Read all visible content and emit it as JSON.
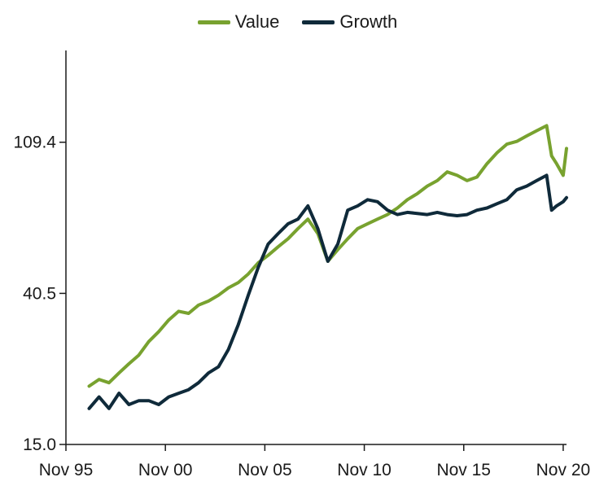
{
  "chart_data": {
    "type": "line",
    "title": "",
    "xlabel": "",
    "ylabel": "",
    "y_scale": "log",
    "ylim": [
      15.0,
      200.0
    ],
    "xlim": [
      "1995-11",
      "2021-01"
    ],
    "x_ticks": [
      "Nov 95",
      "Nov 00",
      "Nov 05",
      "Nov 10",
      "Nov 15",
      "Nov 20"
    ],
    "x_tick_dates": [
      "1995-11",
      "2000-11",
      "2005-11",
      "2010-11",
      "2015-11",
      "2020-11"
    ],
    "y_ticks": [
      15.0,
      40.5,
      109.4
    ],
    "y_tick_labels": [
      "15.0",
      "40.5",
      "109.4"
    ],
    "legend_position": "top-center",
    "grid": false,
    "x": [
      "1997-01",
      "1997-07",
      "1998-01",
      "1998-07",
      "1999-01",
      "1999-07",
      "2000-01",
      "2000-07",
      "2001-01",
      "2001-07",
      "2002-01",
      "2002-07",
      "2003-01",
      "2003-07",
      "2004-01",
      "2004-07",
      "2005-01",
      "2005-07",
      "2006-01",
      "2006-07",
      "2007-01",
      "2007-07",
      "2008-01",
      "2008-07",
      "2009-01",
      "2009-07",
      "2010-01",
      "2010-07",
      "2011-01",
      "2011-07",
      "2012-01",
      "2012-07",
      "2013-01",
      "2013-07",
      "2014-01",
      "2014-07",
      "2015-01",
      "2015-07",
      "2016-01",
      "2016-07",
      "2017-01",
      "2017-07",
      "2018-01",
      "2018-07",
      "2019-01",
      "2019-07",
      "2020-01",
      "2020-04",
      "2020-07",
      "2020-11",
      "2021-01"
    ],
    "series": [
      {
        "name": "Value",
        "color": "#78a22f",
        "values": [
          22.0,
          23.0,
          22.5,
          24.0,
          25.5,
          27.0,
          29.5,
          31.5,
          34.0,
          36.0,
          35.5,
          37.5,
          38.5,
          40.0,
          42.0,
          43.5,
          46.0,
          49.5,
          52.0,
          55.0,
          58.0,
          62.0,
          66.0,
          60.0,
          50.0,
          54.0,
          58.0,
          62.0,
          64.0,
          66.0,
          68.0,
          71.0,
          75.0,
          78.0,
          82.0,
          85.0,
          90.0,
          88.0,
          85.0,
          87.0,
          95.0,
          102.0,
          108.0,
          110.0,
          114.0,
          118.0,
          122.0,
          100.0,
          95.0,
          88.0,
          105.0
        ]
      },
      {
        "name": "Growth",
        "color": "#0f2a3a",
        "values": [
          19.0,
          20.5,
          19.0,
          21.0,
          19.5,
          20.0,
          20.0,
          19.5,
          20.5,
          21.0,
          21.5,
          22.5,
          24.0,
          25.0,
          28.0,
          33.0,
          40.0,
          48.0,
          56.0,
          60.0,
          64.0,
          66.0,
          72.0,
          62.0,
          50.0,
          56.0,
          70.0,
          72.0,
          75.0,
          74.0,
          70.0,
          68.0,
          69.0,
          68.5,
          68.0,
          69.0,
          68.0,
          67.5,
          68.0,
          70.0,
          71.0,
          73.0,
          75.0,
          80.0,
          82.0,
          85.0,
          88.0,
          70.0,
          72.0,
          74.0,
          76.0
        ]
      }
    ]
  }
}
